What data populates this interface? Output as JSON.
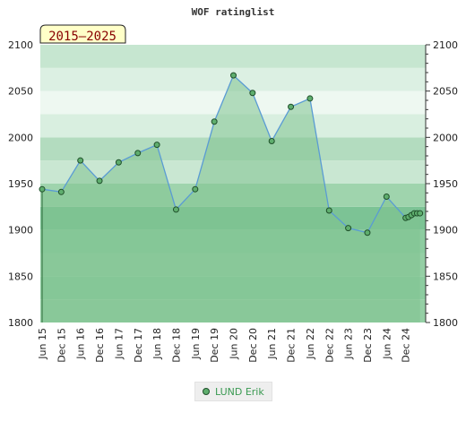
{
  "chart_data": {
    "type": "area",
    "title": "WOF ratinglist",
    "period_badge": "2015–2025",
    "ylim": [
      1800,
      2100
    ],
    "y_ticks": [
      1800,
      1850,
      1900,
      1950,
      2000,
      2050,
      2100
    ],
    "x_tick_labels": [
      "Jun 15",
      "Dec 15",
      "Jun 16",
      "Dec 16",
      "Jun 17",
      "Dec 17",
      "Jun 18",
      "Dec 18",
      "Jun 19",
      "Dec 19",
      "Jun 20",
      "Dec 20",
      "Jun 21",
      "Dec 21",
      "Jun 22",
      "Dec 22",
      "Jun 23",
      "Dec 23",
      "Jun 24",
      "Dec 24"
    ],
    "series": [
      {
        "name": "LUND Erik",
        "x": [
          0,
          1,
          2,
          3,
          4,
          5,
          6,
          7,
          8,
          9,
          10,
          11,
          12,
          13,
          14,
          15,
          16,
          17,
          18,
          19.0,
          19.15,
          19.3,
          19.45,
          19.6,
          19.75
        ],
        "values": [
          1944,
          1941,
          1975,
          1953,
          1973,
          1983,
          1992,
          1922,
          1944,
          2017,
          2067,
          2048,
          1996,
          2033,
          2042,
          1921,
          1902,
          1897,
          1936,
          1913,
          1914,
          1916,
          1918,
          1918,
          1918
        ]
      }
    ],
    "grid": true,
    "legend_position": "bottom-center",
    "colors": {
      "line": "#5a9bd4",
      "fill": "#7fc28f",
      "point": "#5fae6e",
      "point_edge": "#1f4f2a",
      "badge_bg": "#ffffc8",
      "badge_text": "#880000",
      "legend_text": "#3a9a52"
    }
  }
}
